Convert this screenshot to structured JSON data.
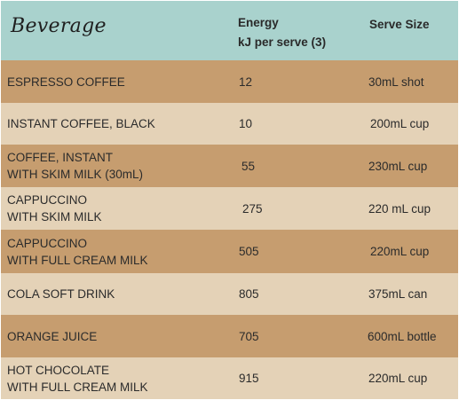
{
  "header": {
    "beverage": "Beverage",
    "energy_line1": "Energy",
    "energy_line2": "kJ per serve (3)",
    "serve_size": "Serve Size"
  },
  "rows": [
    {
      "beverage": "ESPRESSO COFFEE",
      "energy": "12",
      "serve": "30mL shot"
    },
    {
      "beverage": "INSTANT COFFEE, BLACK",
      "energy": "10",
      "serve": "200mL cup"
    },
    {
      "beverage": "COFFEE, INSTANT\nWITH SKIM MILK (30mL)",
      "energy": "55",
      "serve": "230mL cup"
    },
    {
      "beverage": "CAPPUCCINO\nWITH SKIM MILK",
      "energy": "275",
      "serve": "220 mL cup"
    },
    {
      "beverage": "CAPPUCCINO\nWITH FULL CREAM MILK",
      "energy": "505",
      "serve": "220mL cup"
    },
    {
      "beverage": "COLA SOFT DRINK",
      "energy": "805",
      "serve": "375mL can"
    },
    {
      "beverage": "ORANGE JUICE",
      "energy": "705",
      "serve": "600mL bottle"
    },
    {
      "beverage": "HOT CHOCOLATE\nWITH FULL CREAM MILK",
      "energy": "915",
      "serve": "220mL cup"
    }
  ]
}
